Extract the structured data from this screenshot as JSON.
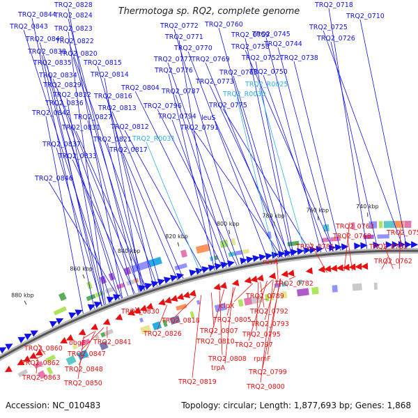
{
  "title": "Thermotoga sp. RQ2, complete genome",
  "footer": {
    "accession": "Accession: NC_010483",
    "summary": "Topology: circular; Length: 1,877,693 bp; Genes: 1,868"
  },
  "colors": {
    "forward": "#1010e8",
    "reverse": "#e81010",
    "rna": "#30b0e0",
    "backbone": "#555555"
  },
  "ticks": [
    "740 kbp",
    "760 kbp",
    "780 kbp",
    "800 kbp",
    "820 kbp",
    "840 kbp",
    "860 kbp",
    "880 kbp"
  ],
  "labels_forward": [
    "TRQ2_0718",
    "TRQ2_0710",
    "TRQ2_0828",
    "TRQ2_0844",
    "TRQ2_0824",
    "TRQ2_0725",
    "TRQ2_0843",
    "TRQ2_0823",
    "TRQ2_0726",
    "TRQ2_0745",
    "TRQ2_0760",
    "TRQ2_0772",
    "TRQ2_0840",
    "TRQ2_0822",
    "TRQ2_0771",
    "TRQ2_0759",
    "TRQ2_0744",
    "TRQ2_0838",
    "TRQ2_0820",
    "TRQ2_0770",
    "TRQ2_0758",
    "TRQ2_0752",
    "TRQ2_0738",
    "TRQ2_0835",
    "TRQ2_0815",
    "TRQ2_0777",
    "TRQ2_0769",
    "TRQ2_0834",
    "TRQ2_0814",
    "TRQ2_0776",
    "TRQ2_0765",
    "TRQ2_0750",
    "TRQ2_0829",
    "TRQ2_0773",
    "TRQ2_0804",
    "TRQ2_0832",
    "TRQ2_0816",
    "TRQ2_0787",
    "TRQ2_0836",
    "TRQ2_0813",
    "TRQ2_0796",
    "TRQ2_0775",
    "TRQ2_0842",
    "TRQ2_0827",
    "TRQ2_0794",
    "leuS",
    "TRQ2_0831",
    "TRQ2_0812",
    "TRQ2_0791",
    "TRQ2_0821",
    "TRQ2_0837",
    "TRQ2_0817",
    "TRQ2_0833",
    "TRQ2_0846"
  ],
  "labels_rna": [
    "TRQ2_R0030",
    "TRQ2_R0025",
    "TRQ2_R0031"
  ],
  "labels_reverse": [
    "TRQ2_0763",
    "TRQ2_0756",
    "TRQ2_0768",
    "TRQ2_0761",
    "TRQ2_0781",
    "TRQ2_0762",
    "ruvA",
    "TRQ2_0782",
    "TRQ2_0789",
    "clpX",
    "TRQ2_0792",
    "TRQ2_0830",
    "TRQ2_0805",
    "TRQ2_0793",
    "TRQ2_0818",
    "TRQ2_0807",
    "TRQ2_0795",
    "TRQ2_0826",
    "TRQ2_0810",
    "TRQ2_0797",
    "TRQ2_0841",
    "TRQ2_0860",
    "obgE",
    "rpmF",
    "TRQ2_0847",
    "TRQ2_0808",
    "TRQ2_0862",
    "trpA",
    "TRQ2_0848",
    "TRQ2_0799",
    "TRQ2_0863",
    "TRQ2_0850",
    "TRQ2_0819",
    "TRQ2_0800"
  ]
}
